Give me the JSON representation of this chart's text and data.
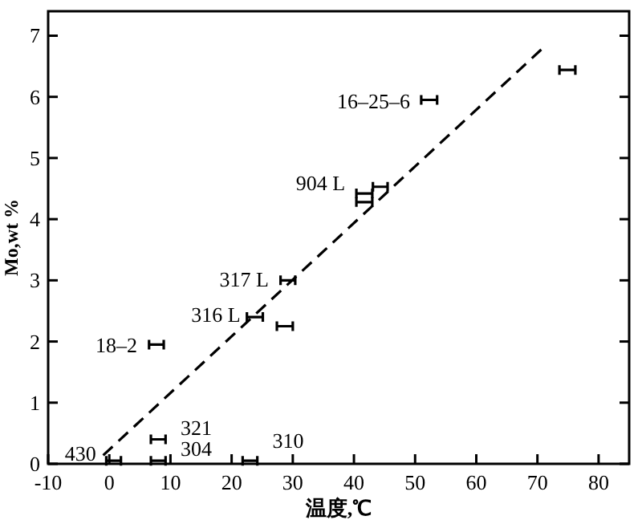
{
  "chart_data": {
    "type": "scatter",
    "xlabel": "温度,℃",
    "ylabel": "Mo,wt %",
    "xlim": [
      -10,
      85
    ],
    "ylim": [
      0,
      7.4
    ],
    "xticks": [
      -10,
      0,
      10,
      20,
      30,
      40,
      50,
      60,
      70,
      80
    ],
    "yticks": [
      0,
      1,
      2,
      3,
      4,
      5,
      6,
      7
    ],
    "series": [
      {
        "color": "#000000",
        "x": [
          0.7,
          8,
          8,
          23,
          7.7,
          23.8,
          28.7,
          29.2,
          41.7,
          41.7,
          44.3,
          52.3,
          74.9
        ],
        "values": [
          0.05,
          0.05,
          0.4,
          0.05,
          1.95,
          2.4,
          2.25,
          3.0,
          4.42,
          4.28,
          4.53,
          5.95,
          6.44
        ],
        "xerrors": [
          1.2,
          1.2,
          1.2,
          1.2,
          1.2,
          1.3,
          1.3,
          1.2,
          1.3,
          1.3,
          1.2,
          1.3,
          1.3
        ]
      },
      {
        "type": "line",
        "color": "#000000",
        "line_style": "dashed",
        "x": [
          -1,
          70.7
        ],
        "values": [
          0.14,
          6.78
        ]
      }
    ],
    "annotations": [
      {
        "text": "430",
        "x": 0.7,
        "y": 0.05
      },
      {
        "text": "304",
        "x": 8,
        "y": 0.05
      },
      {
        "text": "321",
        "x": 8,
        "y": 0.4
      },
      {
        "text": "310",
        "x": 23,
        "y": 0.05
      },
      {
        "text": "18–2",
        "x": 7.7,
        "y": 1.95
      },
      {
        "text": "316 L",
        "x": 23.8,
        "y": 2.4
      },
      {
        "text": "317 L",
        "x": 29.2,
        "y": 3.0
      },
      {
        "text": "904 L",
        "x": 41.7,
        "y": 4.42
      },
      {
        "text": "16–25–6",
        "x": 52.3,
        "y": 5.95
      }
    ]
  }
}
